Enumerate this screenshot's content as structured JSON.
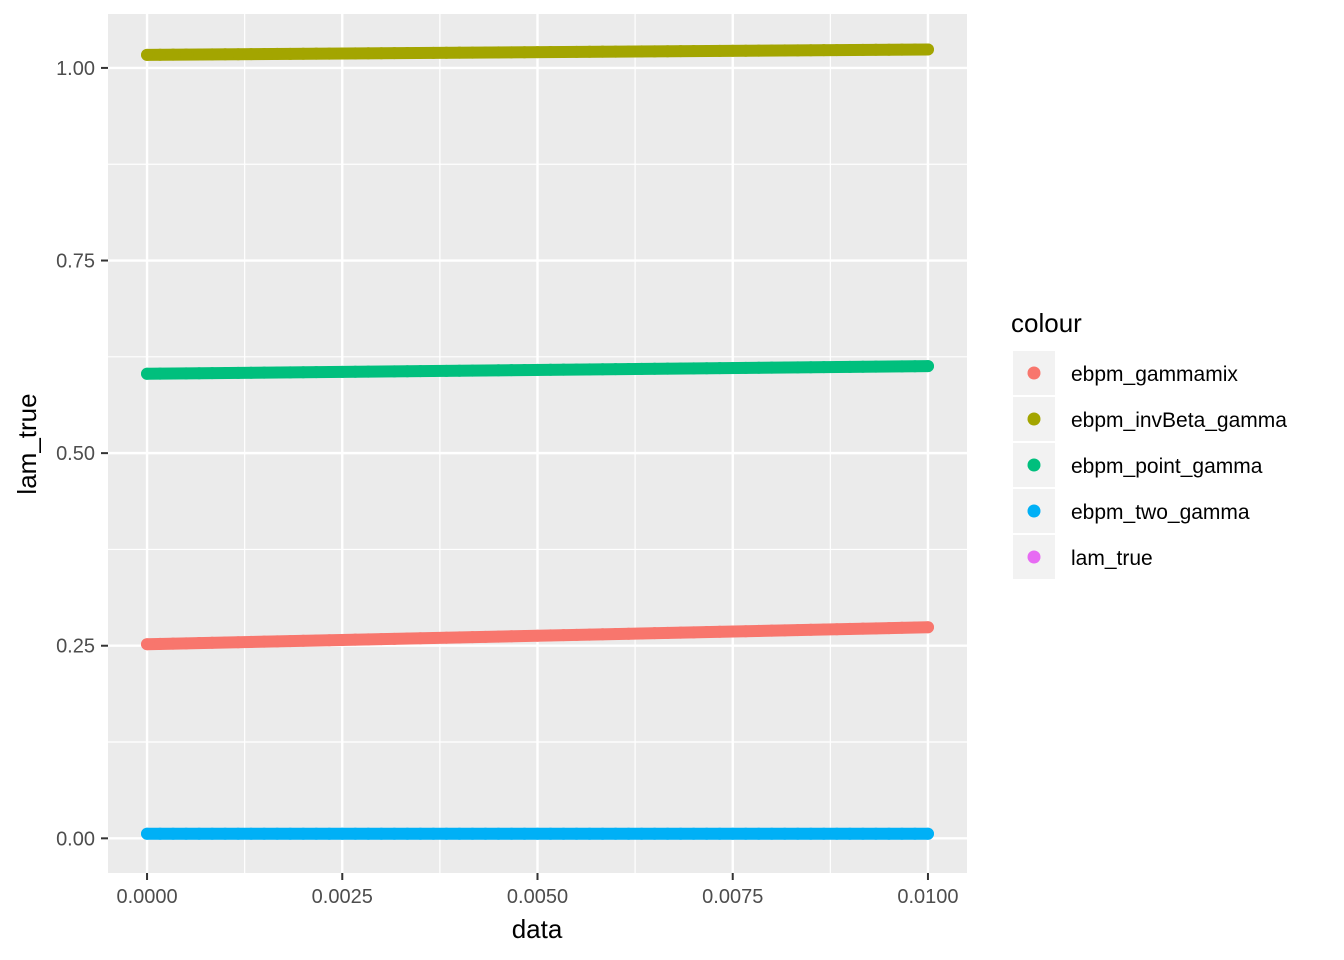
{
  "chart_data": {
    "type": "scatter",
    "xlabel": "data",
    "ylabel": "lam_true",
    "xlim": [
      -0.0005,
      0.0105
    ],
    "ylim": [
      -0.045,
      1.07
    ],
    "x_ticks": [
      0.0,
      0.0025,
      0.005,
      0.0075,
      0.01
    ],
    "x_tick_labels": [
      "0.0000",
      "0.0025",
      "0.0050",
      "0.0075",
      "0.0100"
    ],
    "y_ticks": [
      0.0,
      0.25,
      0.5,
      0.75,
      1.0
    ],
    "y_tick_labels": [
      "0.00",
      "0.25",
      "0.50",
      "0.75",
      "1.00"
    ],
    "grid": true,
    "legend": {
      "title": "colour",
      "position": "right",
      "entries": [
        {
          "label": "ebpm_gammamix",
          "color": "#F8766D"
        },
        {
          "label": "ebpm_invBeta_gamma",
          "color": "#A3A500"
        },
        {
          "label": "ebpm_point_gamma",
          "color": "#00BF7D"
        },
        {
          "label": "ebpm_two_gamma",
          "color": "#00B0F6"
        },
        {
          "label": "lam_true",
          "color": "#E76BF3"
        }
      ]
    },
    "series": [
      {
        "name": "ebpm_gammamix",
        "color": "#F8766D",
        "x": [
          0.0,
          0.01
        ],
        "y": [
          0.252,
          0.274
        ]
      },
      {
        "name": "ebpm_invBeta_gamma",
        "color": "#A3A500",
        "x": [
          0.0,
          0.01
        ],
        "y": [
          1.017,
          1.024
        ]
      },
      {
        "name": "ebpm_point_gamma",
        "color": "#00BF7D",
        "x": [
          0.0,
          0.01
        ],
        "y": [
          0.603,
          0.613
        ]
      },
      {
        "name": "ebpm_two_gamma",
        "color": "#00B0F6",
        "x": [
          0.0,
          0.01
        ],
        "y": [
          0.006,
          0.006
        ]
      }
    ]
  }
}
